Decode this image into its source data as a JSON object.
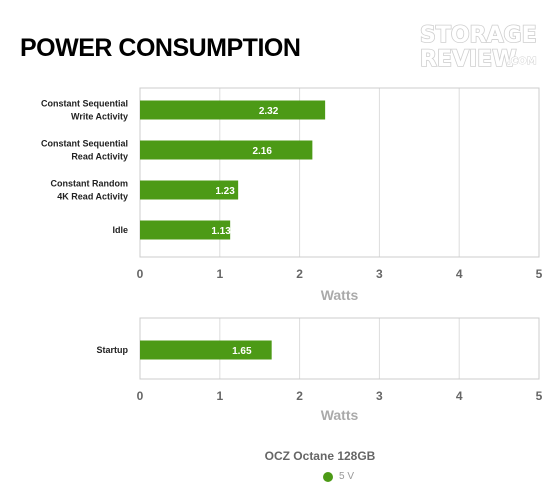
{
  "page": {
    "title": "POWER CONSUMPTION"
  },
  "logo": {
    "line1": "STORAGE",
    "line2": "REVIEW",
    "suffix": ".COM"
  },
  "colors": {
    "bar": "#4c9a16",
    "grid": "#dddddd",
    "frame": "#cccccc"
  },
  "chart_data": [
    {
      "type": "bar",
      "orientation": "horizontal",
      "categories": [
        [
          "Constant Sequential",
          "Write Activity"
        ],
        [
          "Constant Sequential",
          "Read Activity"
        ],
        [
          "Constant Random",
          "4K Read Activity"
        ],
        [
          "Idle"
        ]
      ],
      "series": [
        {
          "name": "5 V",
          "values": [
            2.32,
            2.16,
            1.23,
            1.13
          ]
        }
      ],
      "xlabel": "Watts",
      "xlim": [
        0,
        5
      ],
      "ticks": [
        "0",
        "1",
        "2",
        "3",
        "4",
        "5"
      ],
      "grid": true
    },
    {
      "type": "bar",
      "orientation": "horizontal",
      "categories": [
        [
          "Startup"
        ]
      ],
      "series": [
        {
          "name": "5 V",
          "values": [
            1.65
          ]
        }
      ],
      "xlabel": "Watts",
      "xlim": [
        0,
        5
      ],
      "ticks": [
        "0",
        "1",
        "2",
        "3",
        "4",
        "5"
      ],
      "grid": true
    }
  ],
  "legend": {
    "title": "OCZ Octane 128GB",
    "items": [
      {
        "label": "5 V",
        "color": "#4c9a16"
      }
    ]
  }
}
